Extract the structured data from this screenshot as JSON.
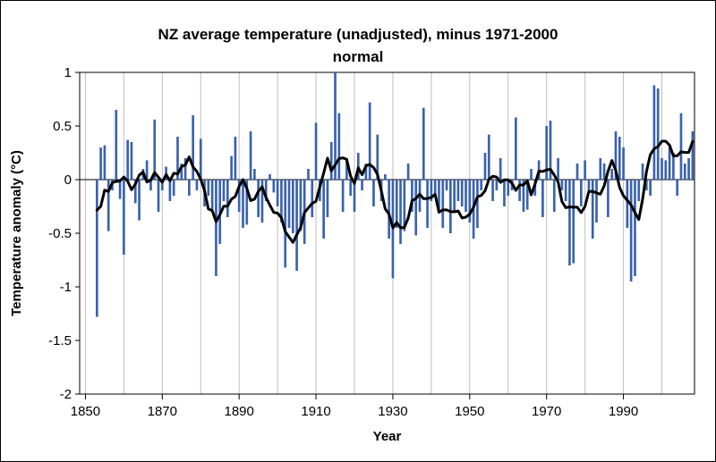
{
  "figure": {
    "title_line1": "NZ average temperature (unadjusted), minus 1971-2000",
    "title_line2": "normal"
  },
  "chart_data": {
    "type": "bar",
    "title": "NZ average temperature (unadjusted), minus 1971-2000 normal",
    "xlabel": "Year",
    "ylabel": "Temperature anomaly (°C)",
    "ylim": [
      -2,
      1
    ],
    "xlim": [
      1849,
      2009
    ],
    "grid": "vertical gridlines every 10 years",
    "legend": "none",
    "xticks": [
      1850,
      1870,
      1890,
      1910,
      1930,
      1950,
      1970,
      1990
    ],
    "yticks": [
      {
        "v": 1,
        "label": "1"
      },
      {
        "v": 0.5,
        "label": "0.5"
      },
      {
        "v": 0,
        "label": "0"
      },
      {
        "v": -0.5,
        "label": "-0.5"
      },
      {
        "v": -1,
        "label": "-1"
      },
      {
        "v": -1.5,
        "label": "-1.5"
      },
      {
        "v": -2,
        "label": "-2"
      }
    ],
    "year_start": 1853,
    "annual_anomalies": [
      -1.28,
      0.3,
      0.32,
      -0.48,
      -0.1,
      0.65,
      -0.18,
      -0.7,
      0.37,
      0.35,
      -0.22,
      -0.38,
      0.1,
      0.18,
      -0.1,
      0.56,
      -0.3,
      -0.1,
      0.12,
      -0.2,
      -0.15,
      0.4,
      0.15,
      0.2,
      -0.15,
      0.6,
      -0.1,
      0.38,
      -0.25,
      -0.15,
      -0.3,
      -0.9,
      -0.6,
      -0.2,
      -0.35,
      0.22,
      0.4,
      -0.3,
      -0.45,
      -0.42,
      0.45,
      0.1,
      -0.35,
      -0.4,
      -0.2,
      0.05,
      -0.12,
      -0.25,
      -0.4,
      -0.82,
      -0.45,
      -0.5,
      -0.85,
      -0.48,
      -0.6,
      0.1,
      -0.35,
      0.53,
      -0.2,
      -0.55,
      -0.35,
      0.35,
      1.0,
      0.62,
      -0.3,
      0.2,
      -0.15,
      -0.3,
      0.25,
      -0.1,
      0.15,
      0.72,
      -0.25,
      0.42,
      -0.2,
      0.05,
      -0.55,
      -0.92,
      -0.45,
      -0.6,
      -0.48,
      0.15,
      -0.3,
      -0.52,
      -0.3,
      0.67,
      -0.45,
      -0.2,
      -0.15,
      -0.28,
      -0.45,
      -0.1,
      -0.5,
      -0.3,
      -0.2,
      -0.25,
      -0.3,
      -0.4,
      -0.55,
      -0.45,
      -0.1,
      0.25,
      0.42,
      -0.2,
      -0.1,
      0.2,
      -0.25,
      -0.15,
      -0.1,
      0.58,
      -0.2,
      -0.3,
      -0.28,
      0.1,
      -0.15,
      0.18,
      -0.35,
      0.5,
      0.55,
      -0.3,
      0.2,
      -0.1,
      -0.2,
      -0.8,
      -0.78,
      0.15,
      -0.25,
      0.18,
      -0.1,
      -0.55,
      -0.4,
      0.2,
      0.15,
      -0.35,
      0.1,
      0.45,
      0.4,
      0.3,
      -0.45,
      -0.95,
      -0.9,
      -0.2,
      0.15,
      -0.1,
      -0.15,
      0.88,
      0.85,
      0.2,
      0.18,
      0.3,
      0.25,
      -0.15,
      0.62,
      0.15,
      0.2,
      0.45
    ],
    "smoothed_line": {
      "description": "black heavy line: 7-year centered moving average of annual anomalies (derived from annual_anomalies)",
      "window": 7
    },
    "colors": {
      "bar": "#3a62ad",
      "line": "#000000",
      "grid": "#bfbfbf",
      "axis": "#000000",
      "background": "#ffffff"
    }
  }
}
